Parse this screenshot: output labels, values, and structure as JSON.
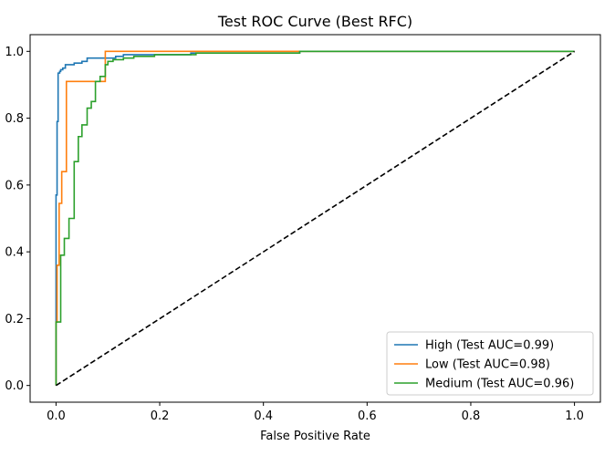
{
  "chart_data": {
    "type": "line",
    "title": "Test ROC Curve (Best RFC)",
    "xlabel": "False Positive Rate",
    "ylabel": "",
    "xlim": [
      -0.05,
      1.05
    ],
    "ylim": [
      -0.05,
      1.05
    ],
    "xticks": [
      0.0,
      0.2,
      0.4,
      0.6,
      0.8,
      1.0
    ],
    "yticks": [
      0.0,
      0.2,
      0.4,
      0.6,
      0.8,
      1.0
    ],
    "xtick_labels": [
      "0.0",
      "0.2",
      "0.4",
      "0.6",
      "0.8",
      "1.0"
    ],
    "ytick_labels": [
      "0.0",
      "0.2",
      "0.4",
      "0.6",
      "0.8",
      "1.0"
    ],
    "grid": false,
    "legend_position": "bottom-right",
    "series": [
      {
        "name": "High (Test AUC=0.99)",
        "color": "#1f77b4",
        "x": [
          0,
          0,
          0.002,
          0.002,
          0.004,
          0.004,
          0.007,
          0.007,
          0.009,
          0.009,
          0.013,
          0.013,
          0.018,
          0.018,
          0.035,
          0.035,
          0.05,
          0.05,
          0.06,
          0.06,
          0.115,
          0.115,
          0.13,
          0.13,
          0.26,
          0.26,
          0.47,
          0.47,
          1.0
        ],
        "y": [
          0,
          0.57,
          0.57,
          0.79,
          0.79,
          0.935,
          0.935,
          0.94,
          0.94,
          0.945,
          0.945,
          0.95,
          0.95,
          0.96,
          0.96,
          0.965,
          0.965,
          0.97,
          0.97,
          0.98,
          0.98,
          0.985,
          0.985,
          0.99,
          0.99,
          0.995,
          0.995,
          1.0,
          1.0
        ]
      },
      {
        "name": "Low (Test AUC=0.98)",
        "color": "#ff7f0e",
        "x": [
          0,
          0,
          0.002,
          0.002,
          0.006,
          0.006,
          0.011,
          0.011,
          0.02,
          0.02,
          0.095,
          0.095,
          1.0
        ],
        "y": [
          0,
          0.19,
          0.19,
          0.36,
          0.36,
          0.545,
          0.545,
          0.64,
          0.64,
          0.91,
          0.91,
          1.0,
          1.0
        ]
      },
      {
        "name": "Medium (Test AUC=0.96)",
        "color": "#2ca02c",
        "x": [
          0,
          0,
          0.009,
          0.009,
          0.016,
          0.016,
          0.025,
          0.025,
          0.035,
          0.035,
          0.043,
          0.043,
          0.05,
          0.05,
          0.06,
          0.06,
          0.068,
          0.068,
          0.076,
          0.076,
          0.085,
          0.085,
          0.095,
          0.095,
          0.1,
          0.1,
          0.11,
          0.11,
          0.13,
          0.13,
          0.15,
          0.15,
          0.19,
          0.19,
          0.27,
          0.27,
          0.47,
          0.47,
          1.0
        ],
        "y": [
          0,
          0.19,
          0.19,
          0.39,
          0.39,
          0.44,
          0.44,
          0.5,
          0.5,
          0.67,
          0.67,
          0.745,
          0.745,
          0.78,
          0.78,
          0.83,
          0.83,
          0.85,
          0.85,
          0.91,
          0.91,
          0.925,
          0.925,
          0.96,
          0.96,
          0.97,
          0.97,
          0.975,
          0.975,
          0.98,
          0.98,
          0.985,
          0.985,
          0.99,
          0.99,
          0.995,
          0.995,
          1.0,
          1.0
        ]
      },
      {
        "name": "",
        "color": "#000000",
        "dash": true,
        "x": [
          0,
          1
        ],
        "y": [
          0,
          1
        ]
      }
    ]
  }
}
